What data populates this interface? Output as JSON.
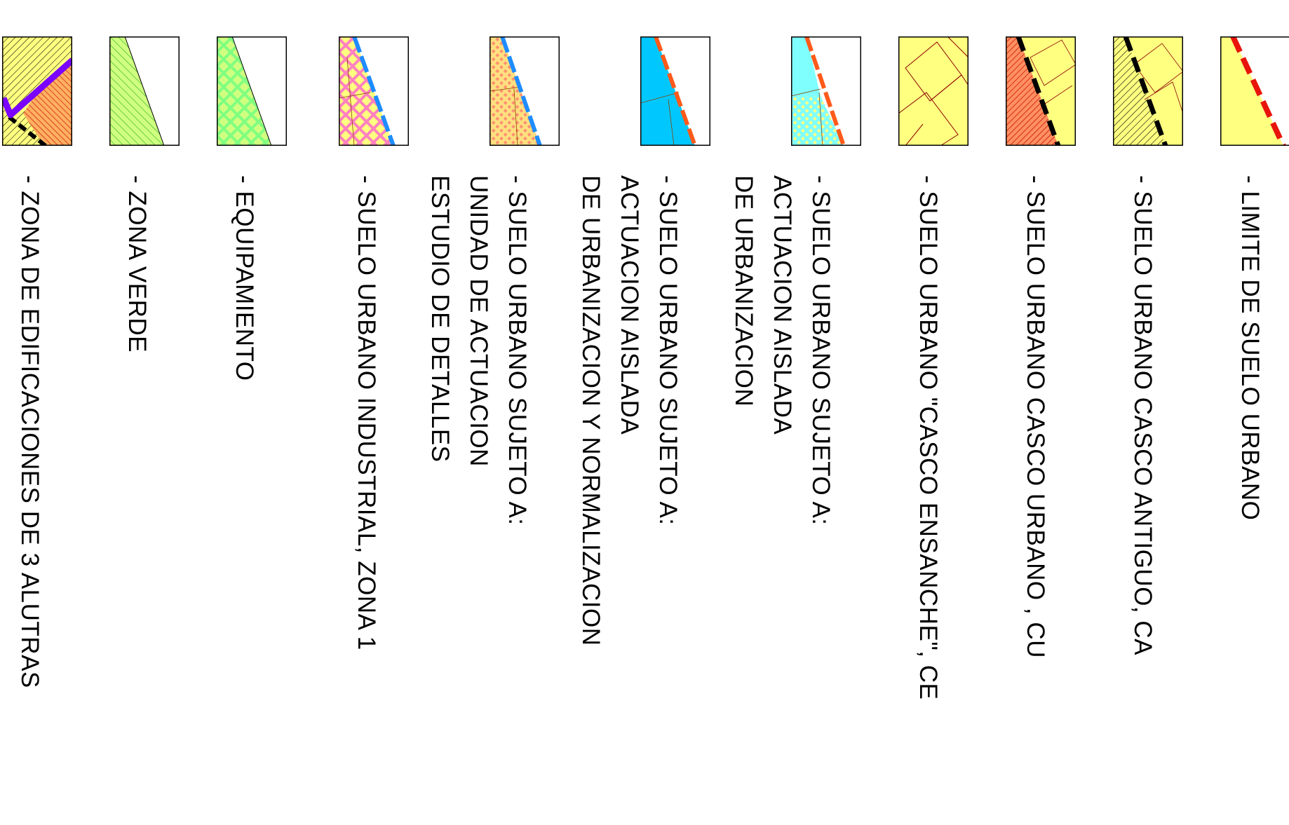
{
  "legend": {
    "items": [
      {
        "label": "- LIMITE DE SUELO URBANO",
        "swatch_fill": "#ffff80",
        "line_color": "#e8140c",
        "pattern": "red-dashed-boundary"
      },
      {
        "label": "- SUELO URBANO CASCO ANTIGUO, CA",
        "swatch_fill": "#ffff80",
        "line_color": "#000000",
        "pattern": "black-hatch"
      },
      {
        "label": "- SUELO URBANO CASCO URBANO , CU",
        "swatch_fill": "#ffff80",
        "line_color": "#c00000",
        "pattern": "red-hatch"
      },
      {
        "label": "- SUELO URBANO \"CASCO ENSANCHE\", CE",
        "swatch_fill": "#ffff80",
        "line_color": "#8b0000",
        "pattern": "parcels"
      },
      {
        "label": "- SUELO URBANO SUJETO A:\nACTUACION AISLADA\nDE URBANIZACION",
        "swatch_fill": "#80ffff",
        "line_color": "#ff5a1a",
        "pattern": "cyan-dots"
      },
      {
        "label": "- SUELO URBANO SUJETO A:\nACTUACION AISLADA\nDE URBANIZACION Y NORMALIZACION",
        "swatch_fill": "#00c8ff",
        "line_color": "#ff5a1a",
        "pattern": "cyan-solid"
      },
      {
        "label": "- SUELO URBANO SUJETO A:\nUNIDAD DE ACTUACION\nESTUDIO DE DETALLES",
        "swatch_fill": "#ffe080",
        "line_color": "#1e8cff",
        "pattern": "salmon-dots"
      },
      {
        "label": "- SUELO URBANO INDUSTRIAL, ZONA 1",
        "swatch_fill": "#ffff80",
        "line_color": "#1e8cff",
        "pattern": "pink-crosshatch"
      },
      {
        "label": "- EQUIPAMIENTO",
        "swatch_fill": "#d0ff80",
        "line_color": "#80ff80",
        "pattern": "green-crosshatch"
      },
      {
        "label": "- ZONA VERDE",
        "swatch_fill": "#d0ff80",
        "line_color": "#20b020",
        "pattern": "green-hatch"
      },
      {
        "label": "- ZONA DE EDIFICACIONES DE 3 ALUTRAS",
        "swatch_fill": "#ffff80",
        "line_color": "#7a00ff",
        "pattern": "check-mark"
      }
    ]
  }
}
